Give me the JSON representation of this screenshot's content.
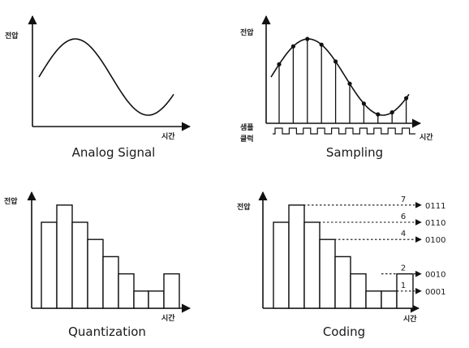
{
  "axis": {
    "voltage": "전압",
    "time": "시간",
    "clock_line1": "샘플",
    "clock_line2": "클럭"
  },
  "panels": {
    "analog": {
      "caption": "Analog Signal"
    },
    "sampling": {
      "caption": "Sampling"
    },
    "quantization": {
      "caption": "Quantization"
    },
    "coding": {
      "caption": "Coding"
    }
  },
  "bar_levels": [
    5,
    6,
    5,
    4,
    3,
    2,
    1,
    1,
    2
  ],
  "coding_levels": [
    {
      "level": "7",
      "code": "0111"
    },
    {
      "level": "6",
      "code": "0110"
    },
    {
      "level": "4",
      "code": "0100"
    },
    {
      "level": "2",
      "code": "0010"
    },
    {
      "level": "1",
      "code": "0001"
    }
  ]
}
